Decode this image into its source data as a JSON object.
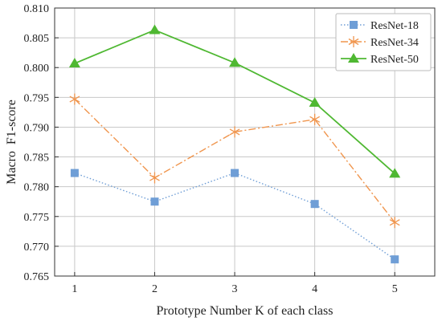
{
  "chart_data": {
    "type": "line",
    "title": "",
    "xlabel": "Prototype Number K of each class",
    "ylabel": "Macro  F1-score",
    "x": [
      1,
      2,
      3,
      4,
      5
    ],
    "xlim": [
      0.75,
      5.5
    ],
    "ylim": [
      0.765,
      0.81
    ],
    "xticks": [
      1,
      2,
      3,
      4,
      5
    ],
    "yticks": [
      0.765,
      0.77,
      0.775,
      0.78,
      0.785,
      0.79,
      0.795,
      0.8,
      0.805,
      0.81
    ],
    "ytick_labels": [
      "0.765",
      "0.770",
      "0.775",
      "0.780",
      "0.785",
      "0.790",
      "0.795",
      "0.800",
      "0.805",
      "0.810"
    ],
    "grid": true,
    "legend_position": "top-right",
    "series": [
      {
        "name": "ResNet-18",
        "values": [
          0.7823,
          0.7775,
          0.7823,
          0.7771,
          0.7678
        ],
        "color": "#6f9ed6",
        "marker": "square",
        "line_style": "dotted"
      },
      {
        "name": "ResNet-34",
        "values": [
          0.7947,
          0.7815,
          0.7892,
          0.7913,
          0.774
        ],
        "color": "#f0954d",
        "marker": "asterisk",
        "line_style": "dashdot"
      },
      {
        "name": "ResNet-50",
        "values": [
          0.8007,
          0.8063,
          0.8008,
          0.7941,
          0.7822
        ],
        "color": "#4fb832",
        "marker": "triangle",
        "line_style": "solid"
      }
    ]
  }
}
